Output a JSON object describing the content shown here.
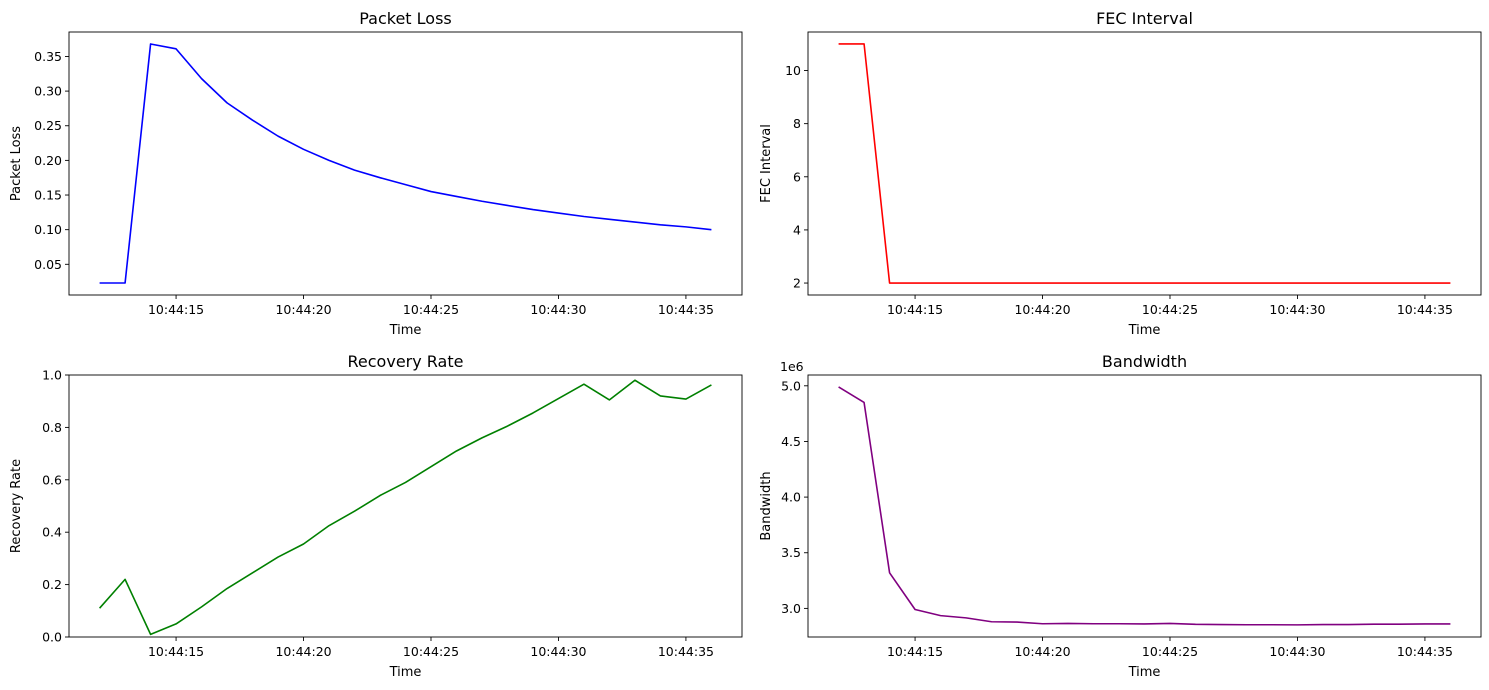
{
  "chart_data": [
    {
      "type": "line",
      "title": "Packet Loss",
      "xlabel": "Time",
      "ylabel": "Packet Loss",
      "color": "#0000ff",
      "x_ticks": [
        "10:44:15",
        "10:44:20",
        "10:44:25",
        "10:44:30",
        "10:44:35"
      ],
      "y_ticks": [
        "0.05",
        "0.10",
        "0.15",
        "0.20",
        "0.25",
        "0.30",
        "0.35"
      ],
      "y_offset": "",
      "x": [
        "10:44:12",
        "10:44:13",
        "10:44:14",
        "10:44:15",
        "10:44:16",
        "10:44:17",
        "10:44:18",
        "10:44:19",
        "10:44:20",
        "10:44:21",
        "10:44:22",
        "10:44:23",
        "10:44:24",
        "10:44:25",
        "10:44:26",
        "10:44:27",
        "10:44:28",
        "10:44:29",
        "10:44:30",
        "10:44:31",
        "10:44:32",
        "10:44:33",
        "10:44:34",
        "10:44:35",
        "10:44:36"
      ],
      "values": [
        0.023,
        0.023,
        0.368,
        0.361,
        0.318,
        0.283,
        0.258,
        0.235,
        0.216,
        0.2,
        0.186,
        0.175,
        0.165,
        0.155,
        0.148,
        0.141,
        0.135,
        0.129,
        0.124,
        0.119,
        0.115,
        0.111,
        0.107,
        0.104,
        0.1
      ],
      "xlim": [
        "10:44:10.8",
        "10:44:37.2"
      ],
      "ylim": [
        0.0057,
        0.3853
      ],
      "grid": false,
      "y_format": "2dec"
    },
    {
      "type": "line",
      "title": "FEC Interval",
      "xlabel": "Time",
      "ylabel": "FEC Interval",
      "color": "#ff0000",
      "x_ticks": [
        "10:44:15",
        "10:44:20",
        "10:44:25",
        "10:44:30",
        "10:44:35"
      ],
      "y_ticks": [
        "2",
        "4",
        "6",
        "8",
        "10"
      ],
      "y_offset": "",
      "x": [
        "10:44:12",
        "10:44:13",
        "10:44:14",
        "10:44:15",
        "10:44:16",
        "10:44:17",
        "10:44:18",
        "10:44:19",
        "10:44:20",
        "10:44:21",
        "10:44:22",
        "10:44:23",
        "10:44:24",
        "10:44:25",
        "10:44:26",
        "10:44:27",
        "10:44:28",
        "10:44:29",
        "10:44:30",
        "10:44:31",
        "10:44:32",
        "10:44:33",
        "10:44:34",
        "10:44:35",
        "10:44:36"
      ],
      "values": [
        11,
        11,
        2,
        2,
        2,
        2,
        2,
        2,
        2,
        2,
        2,
        2,
        2,
        2,
        2,
        2,
        2,
        2,
        2,
        2,
        2,
        2,
        2,
        2,
        2
      ],
      "xlim": [
        "10:44:10.8",
        "10:44:37.2"
      ],
      "ylim": [
        1.55,
        11.45
      ],
      "grid": false,
      "y_format": "int"
    },
    {
      "type": "line",
      "title": "Recovery Rate",
      "xlabel": "Time",
      "ylabel": "Recovery Rate",
      "color": "#008000",
      "x_ticks": [
        "10:44:15",
        "10:44:20",
        "10:44:25",
        "10:44:30",
        "10:44:35"
      ],
      "y_ticks": [
        "0.0",
        "0.2",
        "0.4",
        "0.6",
        "0.8",
        "1.0"
      ],
      "y_offset": "",
      "x": [
        "10:44:12",
        "10:44:13",
        "10:44:14",
        "10:44:15",
        "10:44:16",
        "10:44:17",
        "10:44:18",
        "10:44:19",
        "10:44:20",
        "10:44:21",
        "10:44:22",
        "10:44:23",
        "10:44:24",
        "10:44:25",
        "10:44:26",
        "10:44:27",
        "10:44:28",
        "10:44:29",
        "10:44:30",
        "10:44:31",
        "10:44:32",
        "10:44:33",
        "10:44:34",
        "10:44:35",
        "10:44:36"
      ],
      "values": [
        0.11,
        0.22,
        0.01,
        0.05,
        0.115,
        0.185,
        0.245,
        0.305,
        0.355,
        0.425,
        0.48,
        0.54,
        0.59,
        0.65,
        0.71,
        0.76,
        0.805,
        0.855,
        0.91,
        0.965,
        0.905,
        0.98,
        0.92,
        0.908,
        0.962
      ],
      "xlim": [
        "10:44:10.8",
        "10:44:37.2"
      ],
      "ylim": [
        0,
        1
      ],
      "grid": false,
      "y_format": "1dec"
    },
    {
      "type": "line",
      "title": "Bandwidth",
      "xlabel": "Time",
      "ylabel": "Bandwidth",
      "color": "#800080",
      "x_ticks": [
        "10:44:15",
        "10:44:20",
        "10:44:25",
        "10:44:30",
        "10:44:35"
      ],
      "y_ticks": [
        "3.0",
        "3.5",
        "4.0",
        "4.5",
        "5.0"
      ],
      "y_offset": "1e6",
      "x": [
        "10:44:12",
        "10:44:13",
        "10:44:14",
        "10:44:15",
        "10:44:16",
        "10:44:17",
        "10:44:18",
        "10:44:19",
        "10:44:20",
        "10:44:21",
        "10:44:22",
        "10:44:23",
        "10:44:24",
        "10:44:25",
        "10:44:26",
        "10:44:27",
        "10:44:28",
        "10:44:29",
        "10:44:30",
        "10:44:31",
        "10:44:32",
        "10:44:33",
        "10:44:34",
        "10:44:35",
        "10:44:36"
      ],
      "values": [
        4.99,
        4.85,
        3.32,
        2.99,
        2.935,
        2.915,
        2.88,
        2.877,
        2.862,
        2.865,
        2.862,
        2.862,
        2.86,
        2.865,
        2.857,
        2.855,
        2.853,
        2.853,
        2.852,
        2.855,
        2.855,
        2.858,
        2.858,
        2.86,
        2.86
      ],
      "xlim": [
        "10:44:10.8",
        "10:44:37.2"
      ],
      "ylim": [
        2.743,
        5.097
      ],
      "grid": false,
      "y_format": "1dec"
    }
  ]
}
